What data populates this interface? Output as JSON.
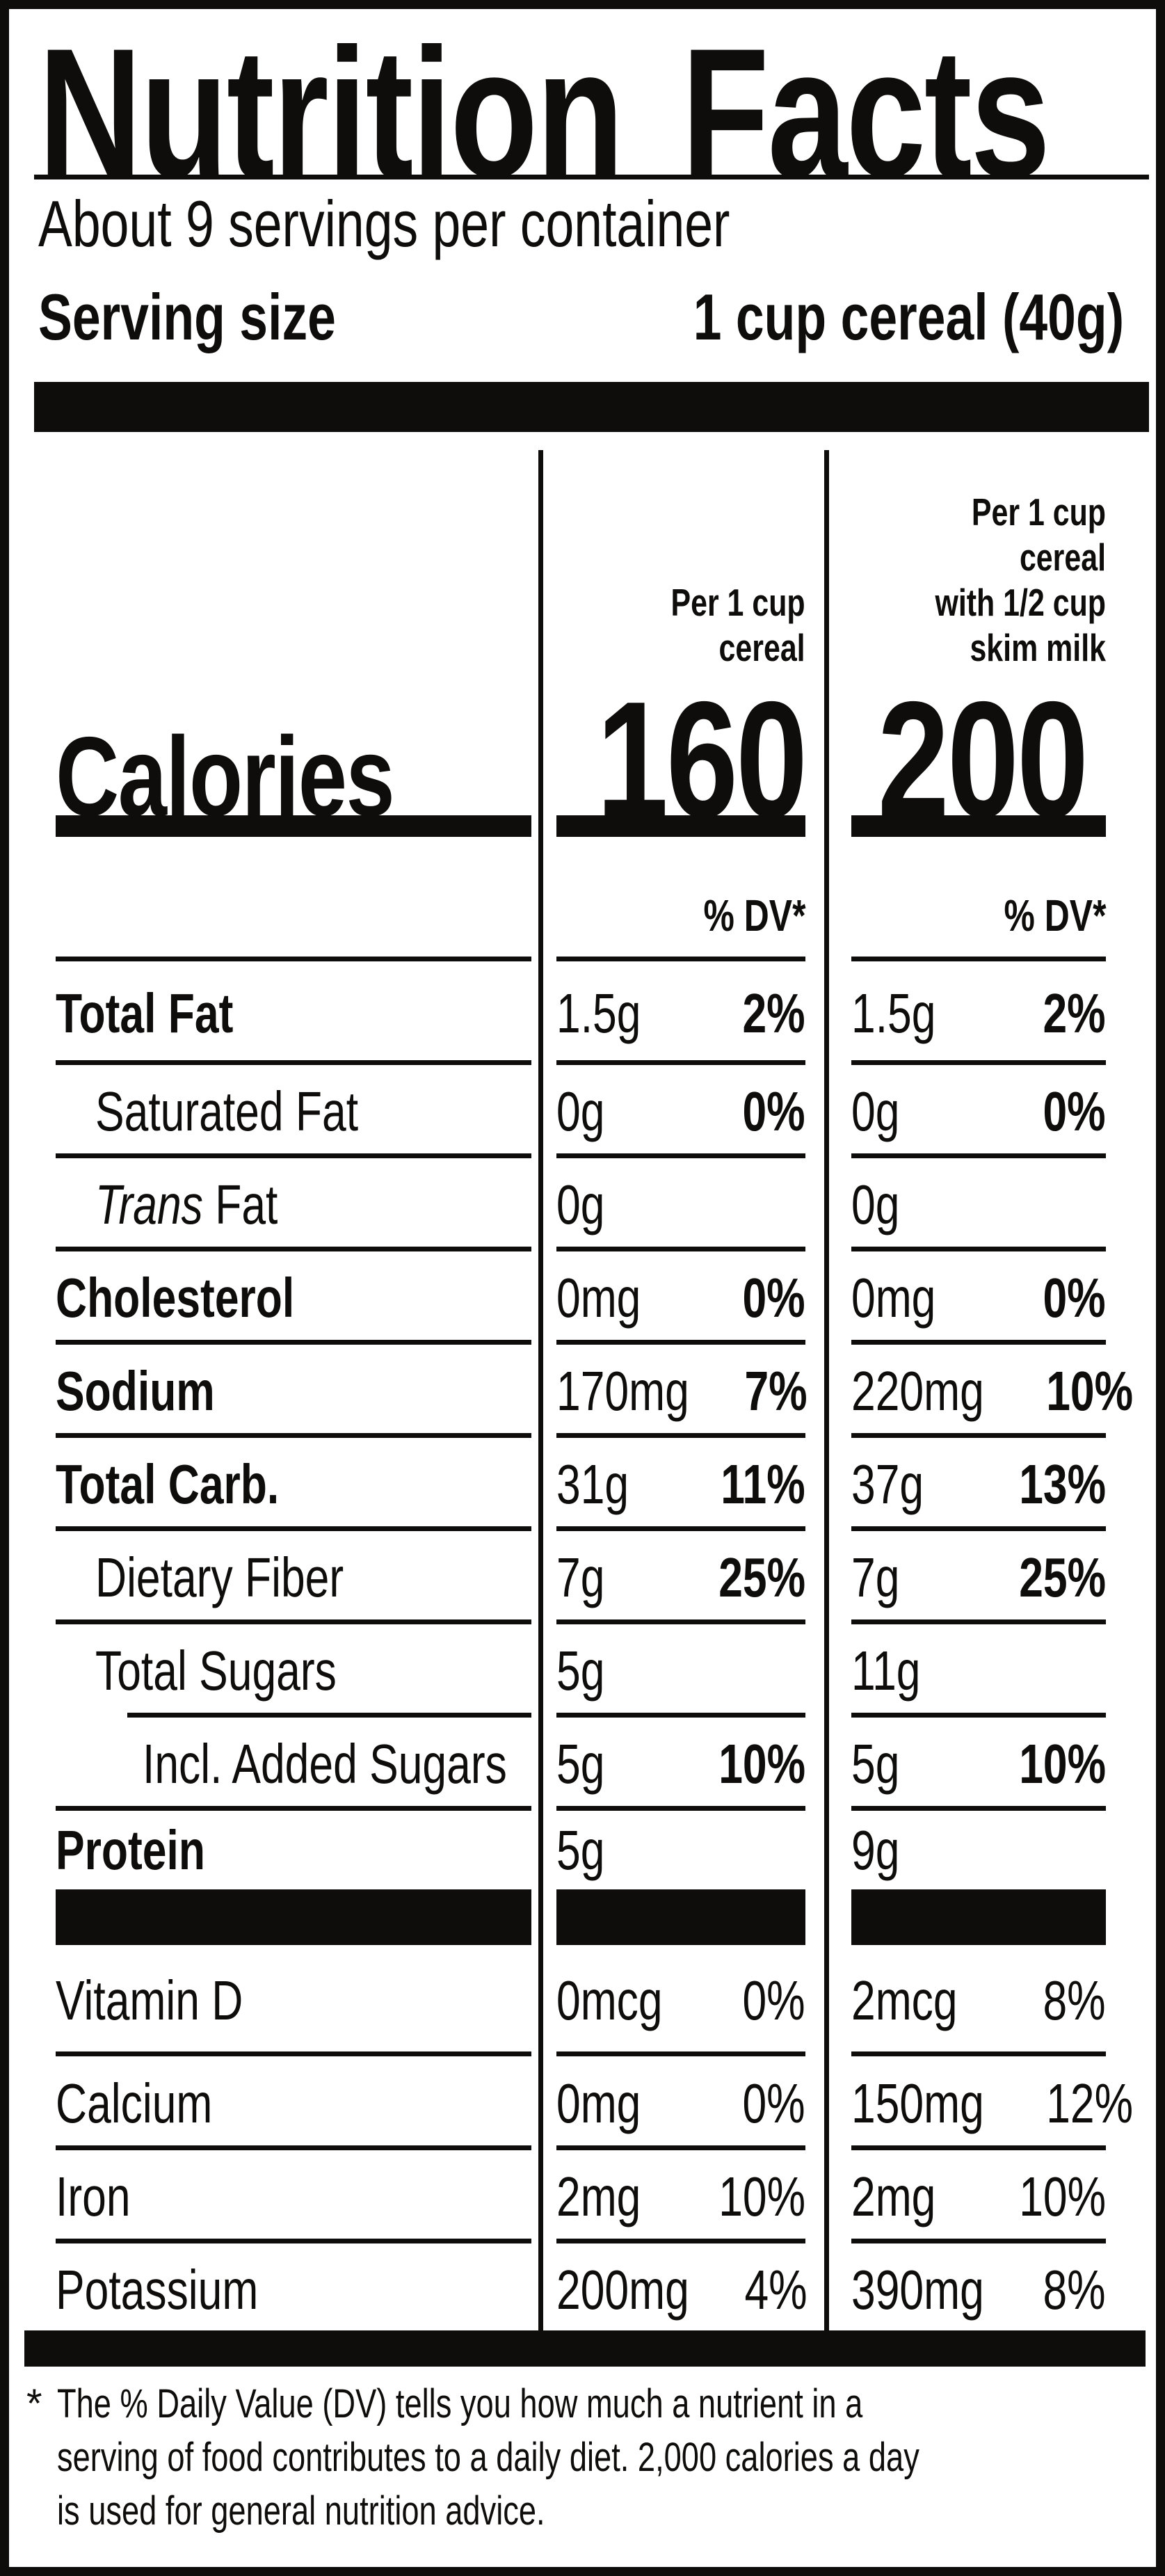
{
  "design": {
    "ink_color": "#0f0d0b",
    "paper_color": "#ffffff"
  },
  "header": {
    "title": "Nutrition Facts",
    "servings_per_container": "About 9 servings per container",
    "serving_size_label": "Serving size",
    "serving_size_value": "1 cup cereal (40g)"
  },
  "columns": {
    "cereal_header": "Per 1 cup\ncereal",
    "milk_header": "Per 1 cup cereal\nwith 1/2 cup\nskim milk",
    "dv_header": "% DV*"
  },
  "calories": {
    "label": "Calories",
    "cereal": "160",
    "milk": "200"
  },
  "rows": {
    "total_fat": {
      "label": "Total Fat",
      "a1": "1.5g",
      "dv1": "2%",
      "a2": "1.5g",
      "dv2": "2%"
    },
    "saturated_fat": {
      "label": "Saturated Fat",
      "a1": "0g",
      "dv1": "0%",
      "a2": "0g",
      "dv2": "0%"
    },
    "trans_fat": {
      "label_italic": "Trans",
      "label_rest": " Fat",
      "a1": "0g",
      "dv1": "",
      "a2": "0g",
      "dv2": ""
    },
    "cholesterol": {
      "label": "Cholesterol",
      "a1": "0mg",
      "dv1": "0%",
      "a2": "0mg",
      "dv2": "0%"
    },
    "sodium": {
      "label": "Sodium",
      "a1": "170mg",
      "dv1": "7%",
      "a2": "220mg",
      "dv2": "10%"
    },
    "total_carb": {
      "label": "Total Carb.",
      "a1": "31g",
      "dv1": "11%",
      "a2": "37g",
      "dv2": "13%"
    },
    "dietary_fiber": {
      "label": "Dietary Fiber",
      "a1": "7g",
      "dv1": "25%",
      "a2": "7g",
      "dv2": "25%"
    },
    "total_sugars": {
      "label": "Total Sugars",
      "a1": "5g",
      "dv1": "",
      "a2": "11g",
      "dv2": ""
    },
    "added_sugars": {
      "label": "Incl. Added Sugars",
      "a1": "5g",
      "dv1": "10%",
      "a2": "5g",
      "dv2": "10%"
    },
    "protein": {
      "label": "Protein",
      "a1": "5g",
      "dv1": "",
      "a2": "9g",
      "dv2": ""
    },
    "vitamin_d": {
      "label": "Vitamin D",
      "a1": "0mcg",
      "dv1": "0%",
      "a2": "2mcg",
      "dv2": "8%"
    },
    "calcium": {
      "label": "Calcium",
      "a1": "0mg",
      "dv1": "0%",
      "a2": "150mg",
      "dv2": "12%"
    },
    "iron": {
      "label": "Iron",
      "a1": "2mg",
      "dv1": "10%",
      "a2": "2mg",
      "dv2": "10%"
    },
    "potassium": {
      "label": "Potassium",
      "a1": "200mg",
      "dv1": "4%",
      "a2": "390mg",
      "dv2": "8%"
    }
  },
  "footnote": {
    "asterisk": "*",
    "line1": "The % Daily Value (DV) tells you how much a nutrient in a",
    "line2": "serving of food contributes to a daily diet. 2,000 calories a day",
    "line3": "is used for general nutrition advice."
  }
}
